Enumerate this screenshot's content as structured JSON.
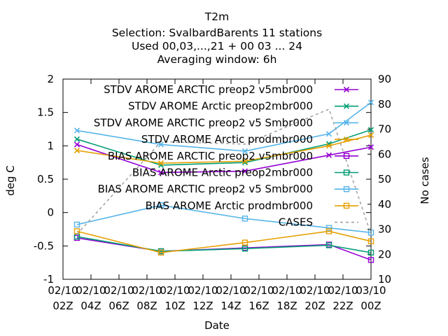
{
  "chart_data": {
    "type": "line",
    "title_lines": [
      "T2m",
      "Selection: SvalbardBarents      11 stations",
      "Used  00,03,...,21  + 00 03 ... 24",
      "Averaging window:  6h"
    ],
    "xlabel": "Date",
    "ylabel": "deg C",
    "y2label": "No cases",
    "ylim": [
      -1,
      2
    ],
    "y2lim": [
      10,
      90
    ],
    "yticks": [
      "-1",
      "-0.5",
      "0",
      "0.5",
      "1",
      "1.5",
      "2"
    ],
    "y2ticks": [
      "10",
      "20",
      "30",
      "40",
      "50",
      "60",
      "70",
      "80",
      "90"
    ],
    "xtick_dates": [
      "02/10",
      "02/10",
      "02/10",
      "02/10",
      "02/10",
      "02/10",
      "02/10",
      "02/10",
      "02/10",
      "02/10",
      "02/10",
      "03/10"
    ],
    "xtick_times": [
      "02Z",
      "04Z",
      "06Z",
      "08Z",
      "10Z",
      "12Z",
      "14Z",
      "16Z",
      "18Z",
      "20Z",
      "22Z",
      "00Z"
    ],
    "x_hours": [
      2,
      4,
      6,
      8,
      10,
      12,
      14,
      16,
      18,
      20,
      22,
      24
    ],
    "grid": false,
    "legend_position": "top-right",
    "series": [
      {
        "name": "STDV AROME_ARCTIC_preop2_v5mbr000",
        "marker": "x",
        "color": "#9400d3",
        "axis": "y",
        "x": [
          3,
          9,
          15,
          21,
          24
        ],
        "y": [
          1.02,
          0.6,
          0.62,
          0.86,
          0.98
        ]
      },
      {
        "name": "STDV AROME_Arctic_preop2mbr000",
        "marker": "x",
        "color": "#009e73",
        "axis": "y",
        "x": [
          3,
          9,
          15,
          21,
          24
        ],
        "y": [
          1.1,
          0.71,
          0.75,
          1.03,
          1.24
        ]
      },
      {
        "name": "STDV AROME_ARCTIC_preop2_v5_Smbr000",
        "marker": "x",
        "color": "#56b4e9",
        "axis": "y",
        "x": [
          3,
          9,
          15,
          21,
          24
        ],
        "y": [
          1.23,
          1.02,
          0.92,
          1.18,
          1.65
        ]
      },
      {
        "name": "STDV AROME_Arctic_prodmbr000",
        "marker": "x",
        "color": "#e69f00",
        "axis": "y",
        "x": [
          3,
          9,
          15,
          21,
          24
        ],
        "y": [
          0.93,
          0.74,
          0.77,
          1.0,
          1.16
        ]
      },
      {
        "name": "BIAS AROME_ARCTIC_preop2_v5mbr000",
        "marker": "square",
        "color": "#9400d3",
        "axis": "y",
        "x": [
          3,
          9,
          15,
          21,
          24
        ],
        "y": [
          -0.38,
          -0.58,
          -0.53,
          -0.48,
          -0.71
        ]
      },
      {
        "name": "BIAS AROME_Arctic_preop2mbr000",
        "marker": "square",
        "color": "#009e73",
        "axis": "y",
        "x": [
          3,
          9,
          15,
          21,
          24
        ],
        "y": [
          -0.36,
          -0.58,
          -0.54,
          -0.49,
          -0.6
        ]
      },
      {
        "name": "BIAS AROME_ARCTIC_preop2_v5_Smbr000",
        "marker": "square",
        "color": "#56b4e9",
        "axis": "y",
        "x": [
          3,
          9,
          15,
          21,
          24
        ],
        "y": [
          -0.18,
          0.11,
          -0.09,
          -0.23,
          -0.3
        ]
      },
      {
        "name": "BIAS AROME_Arctic_prodmbr000",
        "marker": "square",
        "color": "#e69f00",
        "axis": "y",
        "x": [
          3,
          9,
          15,
          21,
          24
        ],
        "y": [
          -0.28,
          -0.6,
          -0.45,
          -0.28,
          -0.43
        ]
      },
      {
        "name": "CASES",
        "marker": "none",
        "dashed": true,
        "color": "#a0a0a0",
        "axis": "y2",
        "x": [
          3,
          9,
          15,
          21,
          24
        ],
        "y": [
          28,
          65,
          64,
          78,
          28
        ]
      }
    ]
  }
}
